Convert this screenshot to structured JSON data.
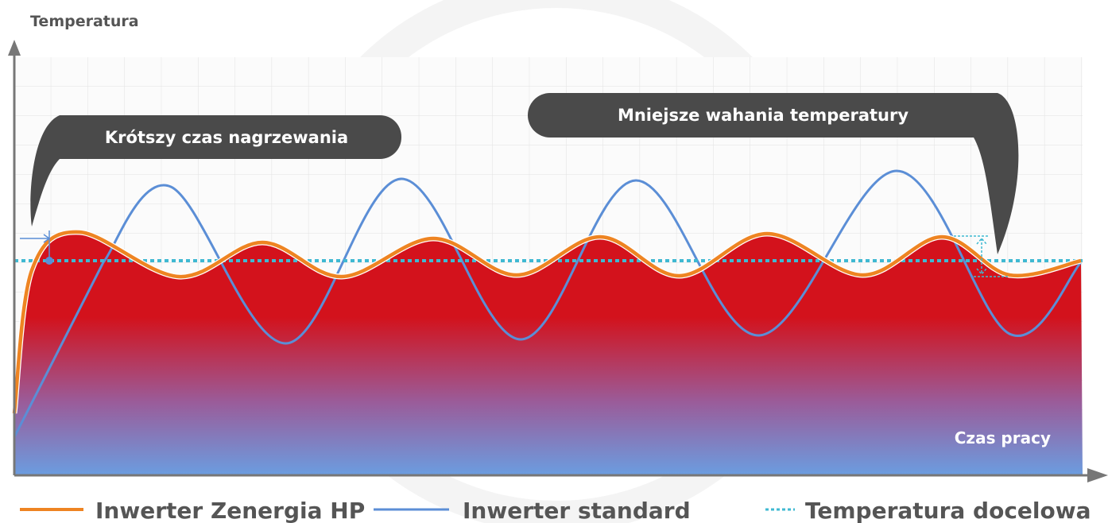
{
  "y_axis_label": "Temperatura",
  "x_axis_label": "Czas pracy",
  "callouts": [
    "Krótszy czas nagrzewania",
    "Mniejsze wahania temperatury"
  ],
  "legend": [
    "Inwerter Zenergia HP",
    "Inwerter standard",
    "Temperatura docelowa"
  ]
}
